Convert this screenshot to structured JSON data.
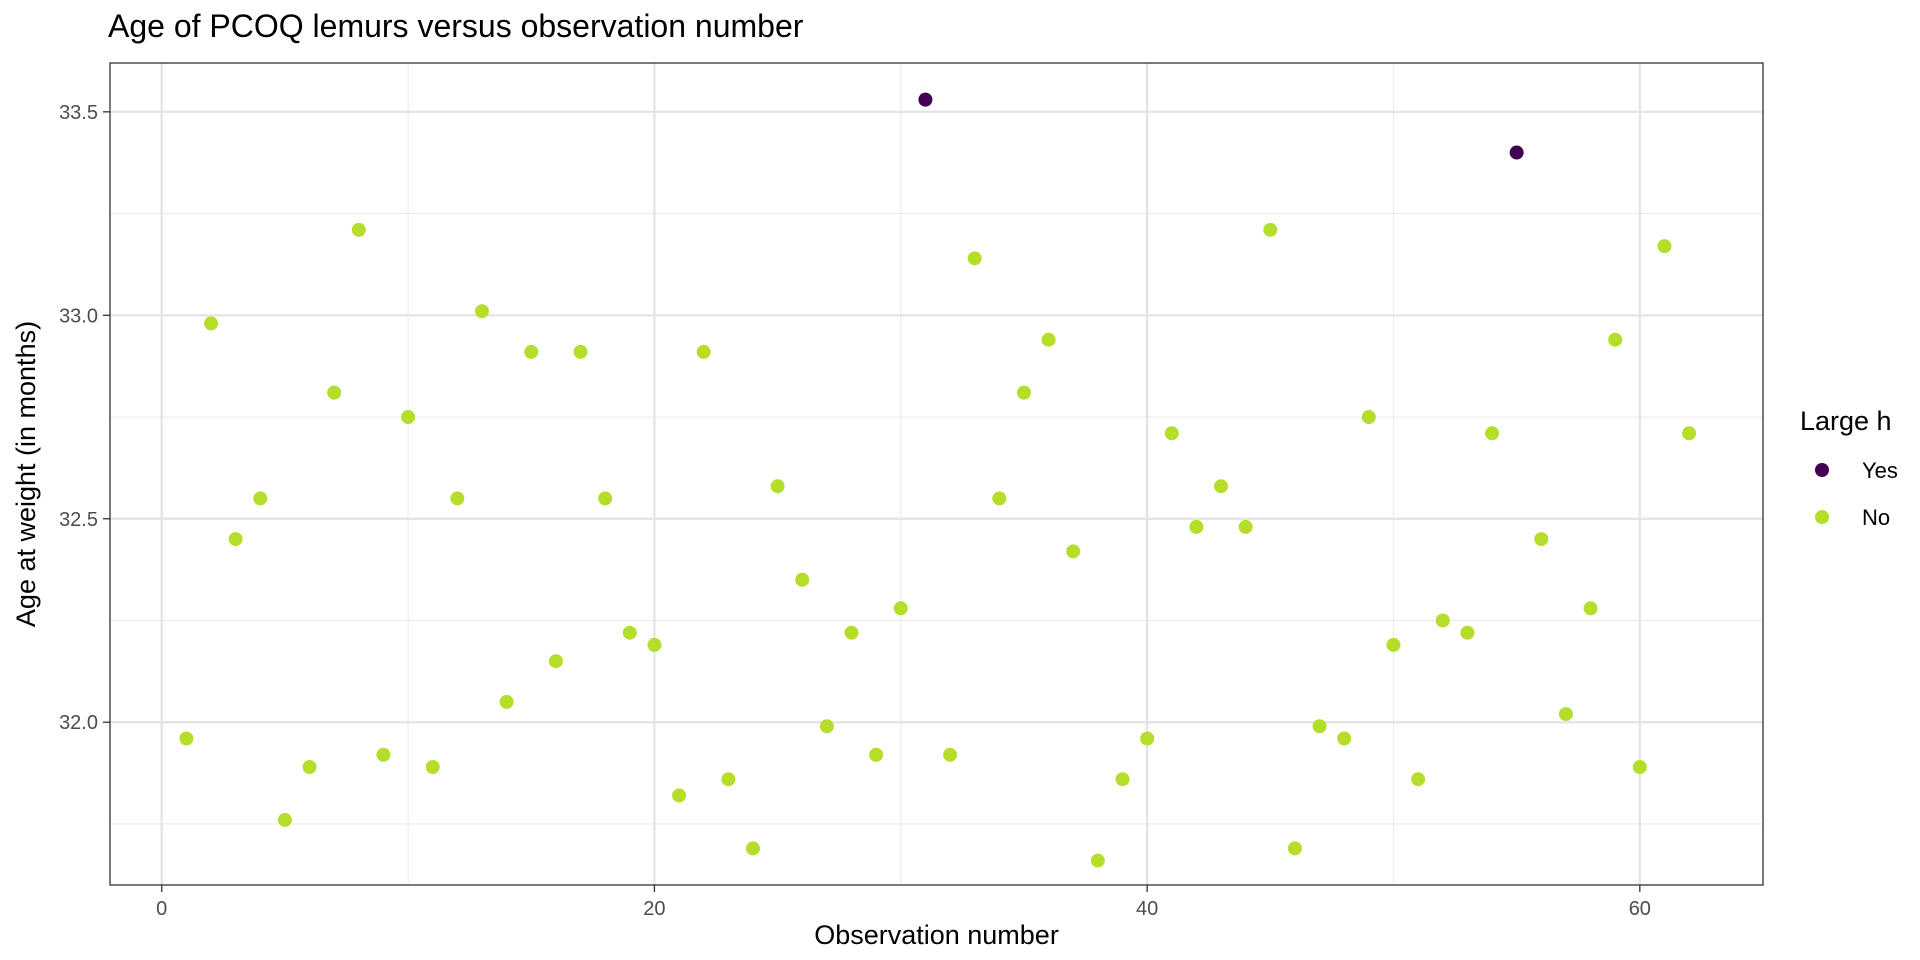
{
  "chart_data": {
    "type": "scatter",
    "title": "Age of PCOQ lemurs versus observation number",
    "xlabel": "Observation number",
    "ylabel": "Age at weight (in months)",
    "xlim": [
      -2.1,
      65.0
    ],
    "ylim": [
      31.6,
      33.62
    ],
    "x_ticks": [
      0,
      20,
      40,
      60
    ],
    "x_tick_labels": [
      "0",
      "20",
      "40",
      "60"
    ],
    "y_ticks": [
      32.0,
      32.5,
      33.0,
      33.5
    ],
    "y_tick_labels": [
      "32.0",
      "32.5",
      "33.0",
      "33.5"
    ],
    "grid": true,
    "legend": {
      "title": "Large h",
      "position": "right",
      "entries": [
        {
          "label": "Yes",
          "color": "#440154"
        },
        {
          "label": "No",
          "color": "#b5de2b"
        }
      ]
    },
    "series": [
      {
        "name": "Yes",
        "color": "#440154",
        "x": [
          31,
          55
        ],
        "y": [
          33.53,
          33.4
        ]
      },
      {
        "name": "No",
        "color": "#b5de2b",
        "x": [
          1,
          2,
          3,
          4,
          5,
          6,
          7,
          8,
          9,
          10,
          11,
          12,
          13,
          14,
          15,
          16,
          17,
          18,
          19,
          20,
          21,
          22,
          23,
          24,
          25,
          26,
          27,
          28,
          29,
          30,
          32,
          33,
          34,
          35,
          36,
          37,
          38,
          39,
          40,
          41,
          42,
          43,
          44,
          45,
          46,
          47,
          48,
          49,
          50,
          51,
          52,
          53,
          54,
          56,
          57,
          58,
          59,
          60,
          61,
          62
        ],
        "y": [
          31.96,
          32.98,
          32.45,
          32.55,
          31.76,
          31.89,
          32.81,
          33.21,
          31.92,
          32.75,
          31.89,
          32.55,
          33.01,
          32.05,
          32.91,
          32.15,
          32.91,
          32.55,
          32.22,
          32.19,
          31.82,
          32.91,
          31.86,
          31.69,
          32.58,
          32.35,
          31.99,
          32.22,
          31.92,
          32.28,
          31.92,
          33.14,
          32.55,
          32.81,
          32.94,
          32.42,
          31.66,
          31.86,
          31.96,
          32.71,
          32.48,
          32.58,
          32.48,
          33.21,
          31.69,
          31.99,
          31.96,
          32.75,
          32.19,
          31.86,
          32.25,
          32.22,
          32.71,
          32.45,
          32.02,
          32.28,
          32.94,
          31.89,
          33.17,
          32.71
        ]
      }
    ]
  }
}
